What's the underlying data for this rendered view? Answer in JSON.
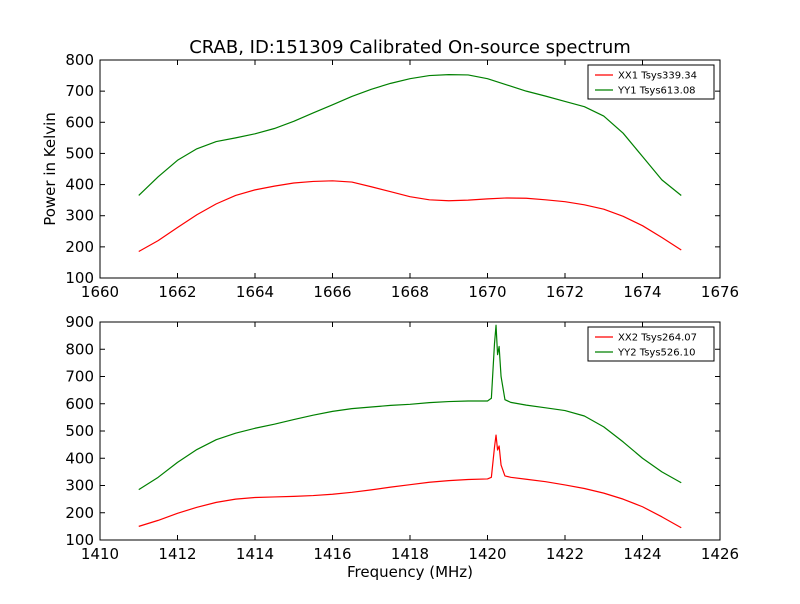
{
  "figure": {
    "title": "CRAB, ID:151309 Calibrated On-source spectrum"
  },
  "chart_data": [
    {
      "type": "line",
      "title": "CRAB, ID:151309 Calibrated On-source spectrum",
      "xlabel": "",
      "ylabel": "Power in Kelvin",
      "xlim": [
        1660,
        1676
      ],
      "ylim": [
        100,
        800
      ],
      "xticks": [
        1660,
        1662,
        1664,
        1666,
        1668,
        1670,
        1672,
        1674,
        1676
      ],
      "yticks": [
        100,
        200,
        300,
        400,
        500,
        600,
        700,
        800
      ],
      "grid": false,
      "legend_position": "top-right",
      "series": [
        {
          "name": "XX1 Tsys339.34",
          "color": "#ff0000",
          "x": [
            1661,
            1661.5,
            1662,
            1662.5,
            1663,
            1663.5,
            1664,
            1664.5,
            1665,
            1665.5,
            1666,
            1666.5,
            1667,
            1667.5,
            1668,
            1668.5,
            1669,
            1669.5,
            1670,
            1670.5,
            1671,
            1671.5,
            1672,
            1672.5,
            1673,
            1673.5,
            1674,
            1674.5,
            1675
          ],
          "y": [
            185,
            220,
            262,
            303,
            338,
            365,
            383,
            395,
            405,
            410,
            412,
            408,
            393,
            377,
            361,
            351,
            348,
            350,
            354,
            357,
            356,
            351,
            345,
            335,
            321,
            298,
            268,
            230,
            190
          ]
        },
        {
          "name": "YY1 Tsys613.08",
          "color": "#008000",
          "x": [
            1661,
            1661.5,
            1662,
            1662.5,
            1663,
            1663.5,
            1664,
            1664.5,
            1665,
            1665.5,
            1666,
            1666.5,
            1667,
            1667.5,
            1668,
            1668.5,
            1669,
            1669.5,
            1670,
            1670.5,
            1671,
            1671.5,
            1672,
            1672.5,
            1673,
            1673.5,
            1674,
            1674.5,
            1675
          ],
          "y": [
            365,
            425,
            478,
            515,
            538,
            550,
            563,
            580,
            603,
            630,
            656,
            683,
            706,
            725,
            740,
            750,
            753,
            752,
            740,
            720,
            700,
            684,
            667,
            650,
            620,
            565,
            490,
            415,
            365
          ]
        }
      ]
    },
    {
      "type": "line",
      "title": "",
      "xlabel": "Frequency (MHz)",
      "ylabel": "",
      "xlim": [
        1410,
        1426
      ],
      "ylim": [
        100,
        900
      ],
      "xticks": [
        1410,
        1412,
        1414,
        1416,
        1418,
        1420,
        1422,
        1424,
        1426
      ],
      "yticks": [
        100,
        200,
        300,
        400,
        500,
        600,
        700,
        800,
        900
      ],
      "grid": false,
      "legend_position": "top-right",
      "series": [
        {
          "name": "XX2 Tsys264.07",
          "color": "#ff0000",
          "x": [
            1411,
            1411.5,
            1412,
            1412.5,
            1413,
            1413.5,
            1414,
            1414.5,
            1415,
            1415.5,
            1416,
            1416.5,
            1417,
            1417.5,
            1418,
            1418.5,
            1419,
            1419.5,
            1420,
            1420.1,
            1420.18,
            1420.22,
            1420.26,
            1420.3,
            1420.35,
            1420.45,
            1420.6,
            1421,
            1421.5,
            1422,
            1422.5,
            1423,
            1423.5,
            1424,
            1424.5,
            1425
          ],
          "y": [
            150,
            172,
            198,
            220,
            238,
            250,
            256,
            258,
            260,
            263,
            268,
            275,
            284,
            294,
            303,
            312,
            318,
            322,
            324,
            330,
            440,
            485,
            430,
            445,
            375,
            335,
            330,
            323,
            314,
            302,
            289,
            272,
            250,
            222,
            185,
            145
          ]
        },
        {
          "name": "YY2 Tsys526.10",
          "color": "#008000",
          "x": [
            1411,
            1411.5,
            1412,
            1412.5,
            1413,
            1413.5,
            1414,
            1414.5,
            1415,
            1415.5,
            1416,
            1416.5,
            1417,
            1417.5,
            1418,
            1418.5,
            1419,
            1419.5,
            1420,
            1420.1,
            1420.18,
            1420.22,
            1420.26,
            1420.3,
            1420.35,
            1420.45,
            1420.6,
            1421,
            1421.5,
            1422,
            1422.5,
            1423,
            1423.5,
            1424,
            1424.5,
            1425
          ],
          "y": [
            285,
            330,
            385,
            432,
            468,
            492,
            510,
            525,
            542,
            558,
            572,
            582,
            588,
            594,
            598,
            604,
            608,
            610,
            610,
            620,
            820,
            888,
            780,
            810,
            700,
            615,
            605,
            595,
            585,
            575,
            555,
            515,
            460,
            400,
            350,
            310
          ]
        }
      ]
    }
  ]
}
